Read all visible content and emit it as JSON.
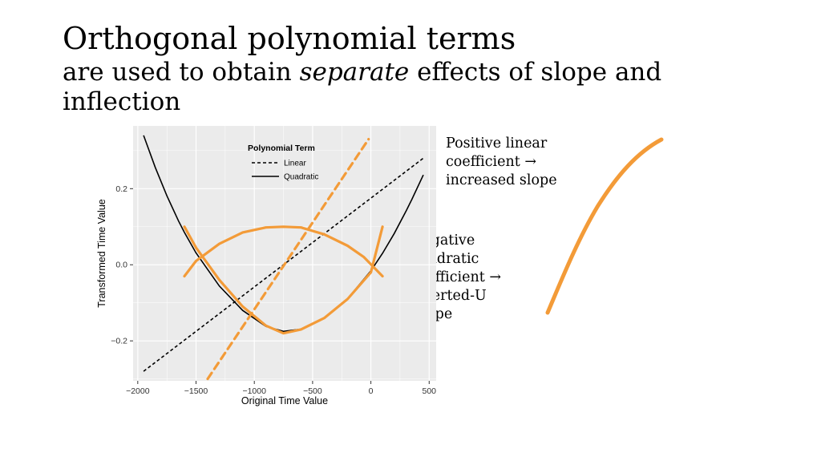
{
  "slide": {
    "title": "Orthogonal polynomial terms",
    "subtitle_before": "are used to obtain ",
    "subtitle_emphasis": "separate",
    "subtitle_after": " effects of slope and inflection",
    "note_positive": "Positive linear coefficient → increased slope",
    "note_negative": "Negative quadratic coefficient → inverted-U shape"
  },
  "colors": {
    "accent": "#F39B38",
    "panel_bg": "#EBEBEB",
    "grid": "#FFFFFF"
  },
  "chart_data": {
    "type": "line",
    "xlabel": "Original Time Value",
    "ylabel": "Transformed Time Value",
    "xlim": [
      -2040,
      560
    ],
    "ylim": [
      -0.305,
      0.365
    ],
    "x_ticks": [
      -2000,
      -1500,
      -1000,
      -500,
      0,
      500
    ],
    "x_tick_labels": [
      "−2000",
      "−1500",
      "−1000",
      "−500",
      "0",
      "500"
    ],
    "y_ticks": [
      -0.2,
      0.0,
      0.2
    ],
    "y_tick_labels": [
      "−0.2",
      "0.0",
      "0.2"
    ],
    "grid": true,
    "legend": {
      "title": "Polynomial Term",
      "position": "top-center",
      "entries": [
        "Linear",
        "Quadratic"
      ]
    },
    "series": [
      {
        "name": "Linear",
        "style": "dashed",
        "color": "#000000",
        "x": [
          -1950,
          450
        ],
        "y": [
          -0.28,
          0.28
        ]
      },
      {
        "name": "Quadratic",
        "style": "solid",
        "color": "#000000",
        "x": [
          -1950,
          -1850,
          -1750,
          -1650,
          -1600,
          -1500,
          -1300,
          -1100,
          -900,
          -750,
          -600,
          -400,
          -200,
          0,
          100,
          200,
          300,
          350,
          450
        ],
        "y": [
          0.34,
          0.256,
          0.181,
          0.115,
          0.085,
          0.031,
          -0.056,
          -0.12,
          -0.162,
          -0.175,
          -0.169,
          -0.141,
          -0.089,
          -0.016,
          0.03,
          0.082,
          0.14,
          0.171,
          0.236
        ]
      }
    ],
    "overlays": [
      {
        "color": "#F39B38",
        "style": "dashed",
        "x": [
          -1400,
          -20
        ],
        "y": [
          -0.3,
          0.33
        ]
      },
      {
        "color": "#F39B38",
        "style": "solid",
        "x": [
          -1600,
          -1500,
          -1300,
          -1100,
          -900,
          -750,
          -600,
          -400,
          -200,
          0,
          100
        ],
        "y": [
          0.1,
          0.045,
          -0.04,
          -0.11,
          -0.16,
          -0.18,
          -0.17,
          -0.14,
          -0.09,
          -0.02,
          0.1
        ]
      },
      {
        "color": "#F39B38",
        "style": "solid",
        "x": [
          -1600,
          -1500,
          -1300,
          -1100,
          -900,
          -750,
          -600,
          -400,
          -200,
          -60,
          100
        ],
        "y": [
          -0.03,
          0.01,
          0.055,
          0.085,
          0.098,
          0.1,
          0.098,
          0.08,
          0.05,
          0.02,
          -0.03
        ]
      }
    ]
  }
}
